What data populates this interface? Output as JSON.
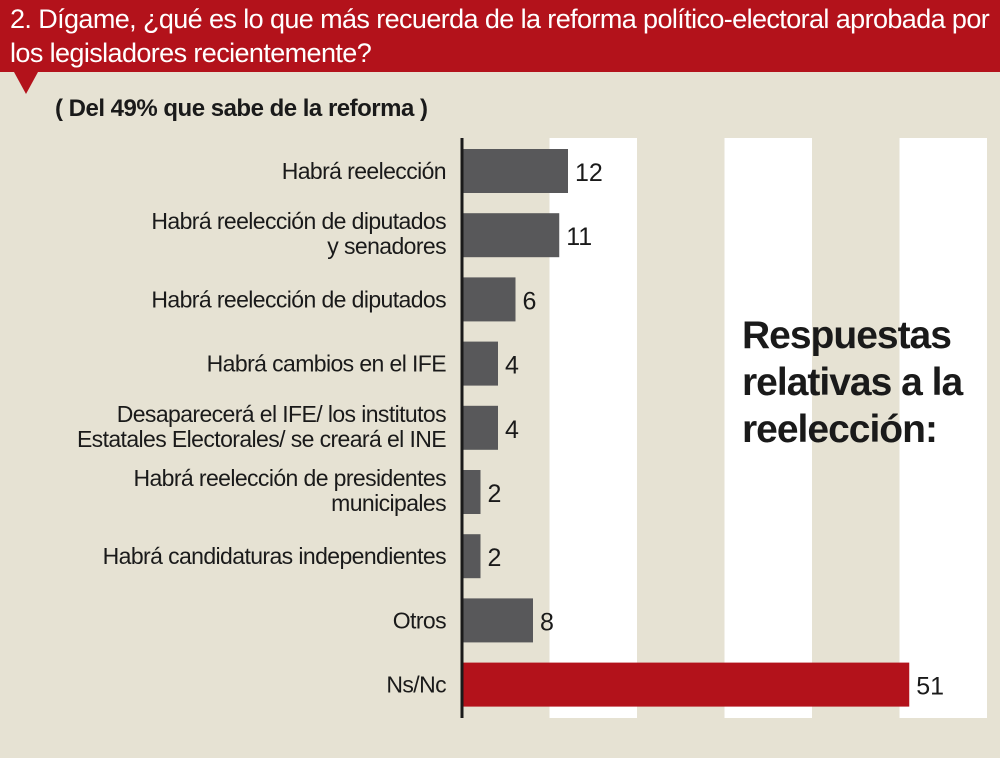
{
  "header": {
    "question": "2. Dígame, ¿qué es lo que más recuerda de la reforma político-electoral aprobada por los legisladores recientemente?",
    "subtitle": "( Del 49% que sabe de la reforma )"
  },
  "annotation": "Respuestas relativas a la reelección:",
  "colors": {
    "header_bg": "#b3121b",
    "background": "#e6e2d3",
    "column_band": "#ffffff",
    "bar_default": "#58585a",
    "bar_highlight": "#b3121b",
    "axis": "#1a1a1a"
  },
  "chart_data": {
    "type": "bar",
    "orientation": "horizontal",
    "categories": [
      [
        "Habrá reelección"
      ],
      [
        "Habrá reelección de diputados",
        "y senadores"
      ],
      [
        "Habrá reelección de diputados"
      ],
      [
        "Habrá cambios en el IFE"
      ],
      [
        "Desaparecerá el IFE/ los institutos",
        "Estatales Electorales/ se creará el INE"
      ],
      [
        "Habrá reelección de presidentes",
        "municipales"
      ],
      [
        "Habrá candidaturas independientes"
      ],
      [
        "Otros"
      ],
      [
        "Ns/Nc"
      ]
    ],
    "values": [
      12,
      11,
      6,
      4,
      4,
      2,
      2,
      8,
      51
    ],
    "highlight_index": 8,
    "xlim": [
      0,
      60
    ],
    "grid": "alternating vertical bands",
    "value_labels": [
      "12",
      "11",
      "6",
      "4",
      "4",
      "2",
      "2",
      "8",
      "51"
    ]
  }
}
